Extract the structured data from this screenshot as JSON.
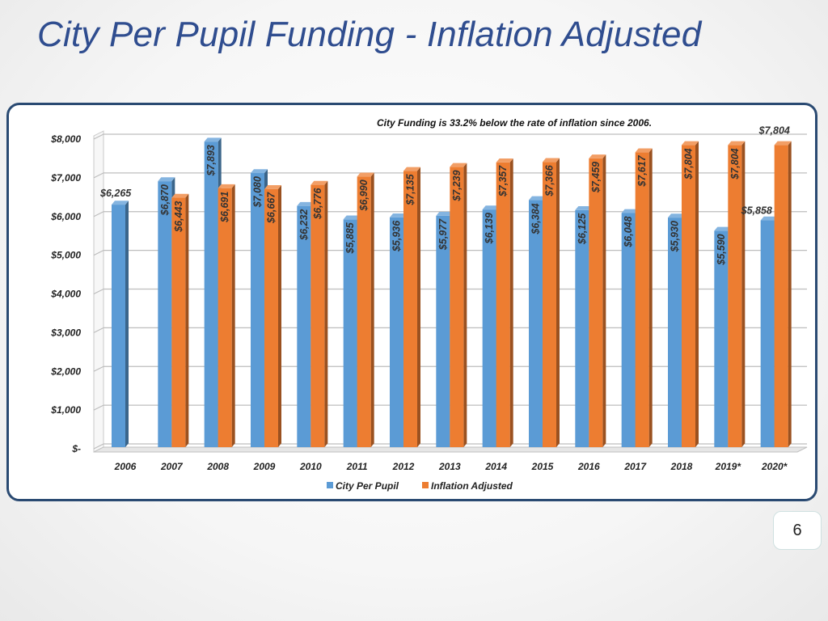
{
  "slide": {
    "title": "City Per Pupil Funding - Inflation Adjusted",
    "page_number": "6"
  },
  "chart_data": {
    "type": "bar",
    "title": "City Funding is 33.2% below the rate of inflation since 2006.",
    "xlabel": "",
    "ylabel": "",
    "categories": [
      "2006",
      "2007",
      "2008",
      "2009",
      "2010",
      "2011",
      "2012",
      "2013",
      "2014",
      "2015",
      "2016",
      "2017",
      "2018",
      "2019*",
      "2020*"
    ],
    "series": [
      {
        "name": "City Per Pupil",
        "color": "#5b9bd5",
        "values": [
          6265,
          6870,
          7893,
          7080,
          6232,
          5885,
          5936,
          5977,
          6139,
          6384,
          6125,
          6048,
          5930,
          5590,
          5858
        ],
        "labels": [
          "$6,265",
          "$6,870",
          "$7,893",
          "$7,080",
          "$6,232",
          "$5,885",
          "$5,936",
          "$5,977",
          "$6,139",
          "$6,384",
          "$6,125",
          "$6,048",
          "$5,930",
          "$5,590",
          "$5,858"
        ]
      },
      {
        "name": "Inflation Adjusted",
        "color": "#ed7d31",
        "values": [
          null,
          6443,
          6691,
          6667,
          6776,
          6990,
          7135,
          7239,
          7357,
          7366,
          7459,
          7617,
          7804,
          7804,
          7804
        ],
        "labels": [
          "",
          "$6,443",
          "$6,691",
          "$6,667",
          "$6,776",
          "$6,990",
          "$7,135",
          "$7,239",
          "$7,357",
          "$7,366",
          "$7,459",
          "$7,617",
          "$7,804",
          "$7,804",
          "$7,804"
        ]
      }
    ],
    "ylim": [
      0,
      8000
    ],
    "yticks": [
      0,
      1000,
      2000,
      3000,
      4000,
      5000,
      6000,
      7000,
      8000
    ],
    "ytick_labels": [
      "$-",
      "$1,000",
      "$2,000",
      "$3,000",
      "$4,000",
      "$5,000",
      "$6,000",
      "$7,000",
      "$8,000"
    ],
    "grid": true,
    "legend_position": "bottom",
    "style": "3d-columns"
  }
}
